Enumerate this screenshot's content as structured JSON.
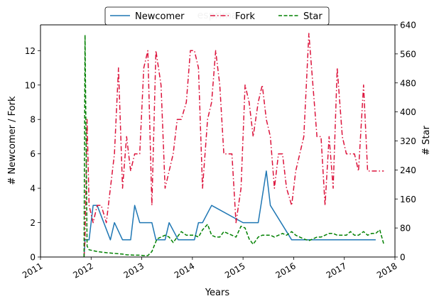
{
  "chart_data": {
    "type": "line",
    "title": "esprima",
    "xlabel": "Years",
    "ylabel_left": "# Newcomer / Fork",
    "ylabel_right": "# Star",
    "xlim": [
      2011.0,
      2018.0
    ],
    "ylim_left": [
      0,
      13.5
    ],
    "ylim_right": [
      0,
      640
    ],
    "x_ticks": [
      2011,
      2012,
      2013,
      2014,
      2015,
      2016,
      2017,
      2018
    ],
    "y_ticks_left": [
      0,
      2,
      4,
      6,
      8,
      10,
      12
    ],
    "y_ticks_right": [
      0,
      80,
      160,
      240,
      320,
      400,
      480,
      560,
      640
    ],
    "legend": {
      "position": "top-center",
      "entries": [
        "Newcomer",
        "Fork",
        "Star"
      ]
    },
    "series": [
      {
        "name": "Newcomer",
        "axis": "left",
        "color": "#1f77b4",
        "style": "solid",
        "x": [
          2011.86,
          2011.88,
          2011.96,
          2012.04,
          2012.12,
          2012.38,
          2012.46,
          2012.62,
          2012.78,
          2012.86,
          2012.96,
          2013.2,
          2013.28,
          2013.46,
          2013.54,
          2013.72,
          2014.04,
          2014.12,
          2014.2,
          2014.38,
          2015.0,
          2015.3,
          2015.46,
          2015.54,
          2015.96,
          2017.62
        ],
        "y": [
          0,
          1,
          1,
          3,
          3,
          1,
          2,
          1,
          1,
          3,
          2,
          2,
          1,
          1,
          2,
          1,
          1,
          2,
          2,
          3,
          2,
          2,
          5,
          3,
          1,
          1
        ]
      },
      {
        "name": "Fork",
        "axis": "left",
        "color": "#dc143c",
        "style": "dashdot",
        "x": [
          2011.86,
          2011.88,
          2011.92,
          2011.96,
          2012.04,
          2012.12,
          2012.2,
          2012.3,
          2012.38,
          2012.46,
          2012.54,
          2012.62,
          2012.7,
          2012.78,
          2012.86,
          2012.96,
          2013.04,
          2013.12,
          2013.2,
          2013.28,
          2013.38,
          2013.46,
          2013.54,
          2013.62,
          2013.7,
          2013.78,
          2013.88,
          2013.96,
          2014.04,
          2014.12,
          2014.2,
          2014.3,
          2014.38,
          2014.46,
          2014.54,
          2014.62,
          2014.7,
          2014.78,
          2014.86,
          2014.96,
          2015.04,
          2015.12,
          2015.2,
          2015.3,
          2015.38,
          2015.46,
          2015.54,
          2015.62,
          2015.7,
          2015.78,
          2015.86,
          2015.96,
          2016.04,
          2016.12,
          2016.2,
          2016.3,
          2016.38,
          2016.46,
          2016.54,
          2016.62,
          2016.7,
          2016.78,
          2016.86,
          2016.96,
          2017.04,
          2017.12,
          2017.2,
          2017.28,
          2017.38,
          2017.46,
          2017.54,
          2017.62,
          2017.7,
          2017.78
        ],
        "y": [
          0,
          1,
          8,
          3,
          2,
          3,
          3,
          2,
          4,
          6,
          11,
          4,
          7,
          5,
          6,
          6,
          11,
          12,
          3,
          12,
          10,
          4,
          5,
          6,
          8,
          8,
          9,
          12,
          12,
          11,
          4,
          8,
          9,
          12,
          10,
          6,
          6,
          6,
          2,
          4,
          10,
          9,
          7,
          9,
          10,
          8,
          7,
          4,
          6,
          6,
          4,
          3,
          5,
          6,
          7,
          13,
          10,
          7,
          7,
          3,
          7,
          4,
          11,
          7,
          6,
          6,
          6,
          5,
          10,
          5,
          5,
          5,
          5,
          5
        ],
        "note": "manually traced values"
      },
      {
        "name": "Star",
        "axis": "right",
        "color": "#008000",
        "style": "dashed",
        "x": [
          2011.86,
          2011.88,
          2011.92,
          2011.96,
          2012.12,
          2012.3,
          2012.46,
          2012.62,
          2012.7,
          2012.86,
          2012.96,
          2013.04,
          2013.12,
          2013.2,
          2013.3,
          2013.38,
          2013.46,
          2013.54,
          2013.62,
          2013.7,
          2013.78,
          2013.88,
          2013.96,
          2014.04,
          2014.12,
          2014.2,
          2014.3,
          2014.38,
          2014.46,
          2014.54,
          2014.62,
          2014.7,
          2014.78,
          2014.86,
          2014.96,
          2015.04,
          2015.12,
          2015.2,
          2015.3,
          2015.38,
          2015.46,
          2015.54,
          2015.62,
          2015.7,
          2015.78,
          2015.86,
          2015.96,
          2016.04,
          2016.12,
          2016.2,
          2016.3,
          2016.38,
          2016.46,
          2016.54,
          2016.62,
          2016.7,
          2016.78,
          2016.86,
          2016.96,
          2017.04,
          2017.12,
          2017.2,
          2017.28,
          2017.38,
          2017.46,
          2017.54,
          2017.62,
          2017.7,
          2017.78
        ],
        "y": [
          0,
          612,
          30,
          20,
          15,
          12,
          10,
          8,
          6,
          5,
          5,
          4,
          4,
          15,
          50,
          55,
          60,
          55,
          40,
          55,
          70,
          60,
          60,
          60,
          55,
          75,
          90,
          60,
          55,
          55,
          70,
          65,
          60,
          55,
          85,
          80,
          50,
          35,
          55,
          60,
          60,
          60,
          55,
          60,
          65,
          60,
          70,
          60,
          55,
          50,
          45,
          50,
          55,
          55,
          60,
          65,
          65,
          60,
          60,
          60,
          70,
          60,
          60,
          70,
          60,
          65,
          65,
          75,
          35
        ]
      }
    ]
  }
}
